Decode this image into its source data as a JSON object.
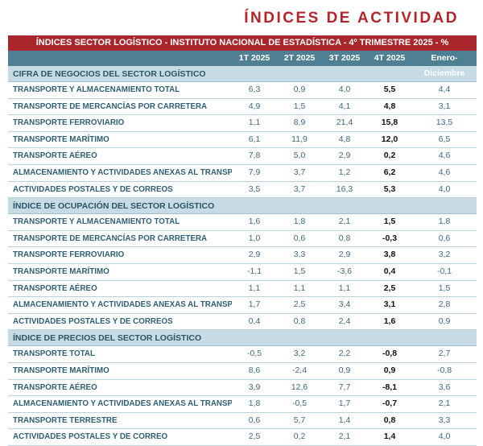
{
  "page_title": "ÍNDICES DE ACTIVIDAD",
  "banner_title": "ÍNDICES SECTOR LOGÍSTICO - INSTITUTO NACIONAL DE ESTADÍSTICA - 4º TRIMESTRE 2025 - %",
  "columns": [
    "1T 2025",
    "2T 2025",
    "3T 2025",
    "4T 2025",
    "Enero-Diciembre"
  ],
  "sections": [
    {
      "title": "CIFRA DE NEGOCIOS DEL SECTOR LOGÍSTICO",
      "rows": [
        {
          "label": "TRANSPORTE Y ALMACENAMIENTO TOTAL",
          "values": [
            "6,3",
            "0,9",
            "4,0",
            "5,5",
            "4,4"
          ]
        },
        {
          "label": "TRANSPORTE DE MERCANCÍAS POR CARRETERA",
          "values": [
            "4,9",
            "1,5",
            "4,1",
            "4,8",
            "3,1"
          ]
        },
        {
          "label": "TRANSPORTE FERROVIARIO",
          "values": [
            "1,1",
            "8,9",
            "21,4",
            "15,8",
            "13,5"
          ]
        },
        {
          "label": "TRANSPORTE MARÍTIMO",
          "values": [
            "6,1",
            "11,9",
            "4,8",
            "12,0",
            "6,5"
          ]
        },
        {
          "label": "TRANSPORTE AÉREO",
          "values": [
            "7,8",
            "5,0",
            "2,9",
            "0,2",
            "4,6"
          ]
        },
        {
          "label": "ALMACENAMIENTO Y ACTIVIDADES ANEXAS AL TRANSPORTE",
          "values": [
            "7,9",
            "3,7",
            "1,2",
            "6,2",
            "4,6"
          ]
        },
        {
          "label": "ACTIVIDADES POSTALES Y DE CORREOS",
          "values": [
            "3,5",
            "3,7",
            "16,3",
            "5,3",
            "4,0"
          ]
        }
      ]
    },
    {
      "title": "ÍNDICE DE OCUPACIÓN DEL SECTOR LOGÍSTICO",
      "rows": [
        {
          "label": "TRANSPORTE Y ALMACENAMIENTO TOTAL",
          "values": [
            "1,6",
            "1,8",
            "2,1",
            "1,5",
            "1,8"
          ]
        },
        {
          "label": "TRANSPORTE DE MERCANCÍAS POR CARRETERA",
          "values": [
            "1,0",
            "0,6",
            "0,8",
            "-0,3",
            "0,6"
          ]
        },
        {
          "label": "TRANSPORTE FERROVIARIO",
          "values": [
            "2,9",
            "3,3",
            "2,9",
            "3,8",
            "3,2"
          ]
        },
        {
          "label": "TRANSPORTE MARÍTIMO",
          "values": [
            "-1,1",
            "1,5",
            "-3,6",
            "0,4",
            "-0,1"
          ]
        },
        {
          "label": "TRANSPORTE AÉREO",
          "values": [
            "1,1",
            "1,1",
            "1,1",
            "2,5",
            "1,5"
          ]
        },
        {
          "label": "ALMACENAMIENTO Y ACTIVIDADES ANEXAS AL TRANSPORTE",
          "values": [
            "1,7",
            "2,5",
            "3,4",
            "3,1",
            "2,8"
          ]
        },
        {
          "label": "ACTIVIDADES POSTALES Y DE CORREOS",
          "values": [
            "0,4",
            "0,8",
            "2,4",
            "1,6",
            "0,9"
          ]
        }
      ]
    },
    {
      "title": "ÍNDICE DE PRECIOS DEL SECTOR LOGÍSTICO",
      "rows": [
        {
          "label": "TRANSPORTE TOTAL",
          "values": [
            "-0,5",
            "3,2",
            "2,2",
            "-0,8",
            "2,7"
          ]
        },
        {
          "label": "TRANSPORTE MARÍTIMO",
          "values": [
            "8,6",
            "-2,4",
            "0,9",
            "0,9",
            "-0,8"
          ]
        },
        {
          "label": "TRANSPORTE AÉREO",
          "values": [
            "3,9",
            "12,6",
            "7,7",
            "-8,1",
            "3,6"
          ]
        },
        {
          "label": "ALMACENAMIENTO Y ACTIVIDADES ANEXAS AL TRANSPORTE",
          "values": [
            "1,8",
            "-0,5",
            "1,7",
            "-0,7",
            "2,1"
          ]
        },
        {
          "label": "TRANSPORTE TERRESTRE",
          "values": [
            "0,6",
            "5,7",
            "1,4",
            "0,8",
            "3,3"
          ]
        },
        {
          "label": "ACTIVIDADES POSTALES Y DE CORREO",
          "values": [
            "2,5",
            "0,2",
            "2,1",
            "1,4",
            "4,0"
          ]
        }
      ]
    }
  ]
}
